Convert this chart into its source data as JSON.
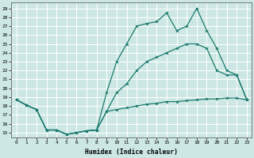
{
  "xlabel": "Humidex (Indice chaleur)",
  "bg_color": "#cde8e4",
  "line_color": "#1a7a6e",
  "grid_color": "#ffffff",
  "xlim": [
    -0.5,
    23.5
  ],
  "ylim": [
    14.5,
    29.7
  ],
  "xticks": [
    0,
    1,
    2,
    3,
    4,
    5,
    6,
    7,
    8,
    9,
    10,
    11,
    12,
    13,
    14,
    15,
    16,
    17,
    18,
    19,
    20,
    21,
    22,
    23
  ],
  "yticks": [
    15,
    16,
    17,
    18,
    19,
    20,
    21,
    22,
    23,
    24,
    25,
    26,
    27,
    28,
    29
  ],
  "line_top_x": [
    0,
    1,
    2,
    3,
    4,
    5,
    6,
    7,
    8,
    9,
    10,
    11,
    12,
    13,
    14,
    15,
    16,
    17,
    18,
    19,
    20,
    21,
    22,
    23
  ],
  "line_top_y": [
    18.7,
    18.1,
    17.6,
    15.3,
    15.3,
    14.8,
    15.0,
    15.2,
    15.3,
    19.5,
    23.0,
    25.0,
    27.0,
    27.3,
    27.5,
    28.5,
    26.5,
    27.0,
    29.0,
    26.5,
    24.5,
    22.0,
    21.5,
    18.7
  ],
  "line_mid_x": [
    0,
    1,
    2,
    3,
    4,
    5,
    6,
    7,
    8,
    9,
    10,
    11,
    12,
    13,
    14,
    15,
    16,
    17,
    18,
    19,
    20,
    21,
    22,
    23
  ],
  "line_mid_y": [
    18.7,
    18.1,
    17.6,
    15.3,
    15.3,
    14.8,
    15.0,
    15.2,
    15.3,
    17.4,
    19.5,
    20.5,
    22.0,
    23.0,
    23.5,
    24.0,
    24.5,
    25.0,
    25.0,
    24.5,
    22.0,
    21.5,
    21.5,
    18.7
  ],
  "line_bot_x": [
    0,
    1,
    2,
    3,
    4,
    5,
    6,
    7,
    8,
    9,
    10,
    11,
    12,
    13,
    14,
    15,
    16,
    17,
    18,
    19,
    20,
    21,
    22,
    23
  ],
  "line_bot_y": [
    18.7,
    18.1,
    17.6,
    15.3,
    15.3,
    14.8,
    15.0,
    15.2,
    15.3,
    17.4,
    17.6,
    17.8,
    18.0,
    18.2,
    18.3,
    18.5,
    18.5,
    18.6,
    18.7,
    18.8,
    18.8,
    18.9,
    18.9,
    18.7
  ]
}
